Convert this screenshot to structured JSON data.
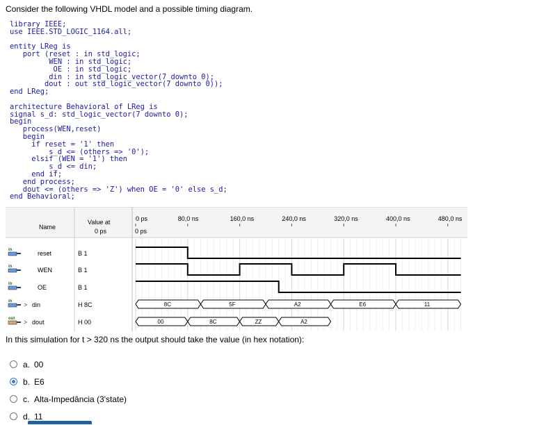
{
  "question": "Consider the following VHDL model and a possible timing diagram.",
  "code_lines": [
    "library IEEE;",
    "use IEEE.STD_LOGIC_1164.all;",
    "",
    "entity LReg is",
    "   port (reset : in std_logic;",
    "         WEN : in std_logic;",
    "          OE : in std_logic;",
    "         din : in std_logic_vector(7 downto 0);",
    "        dout : out std_logic_vector(7 downto 0));",
    "end LReg;",
    "",
    "architecture Behavioral of LReg is",
    "signal s_d: std_logic_vector(7 downto 0);",
    "begin",
    "   process(WEN,reset)",
    "   begin",
    "     if reset = '1' then",
    "         s_d <= (others => '0');",
    "     elsif (WEN = '1') then",
    "         s_d <= din;",
    "     end if;",
    "   end process;",
    "   dout <= (others => 'Z') when OE = '0' else s_d;",
    "end Behavioral;"
  ],
  "waveform": {
    "header_name": "Name",
    "header_value_line1": "Value at",
    "header_value_line2": "0 ps",
    "cursor_label": "0 ps",
    "time_labels": [
      "0 ps",
      "80,0 ns",
      "160,0 ns",
      "240,0 ns",
      "320,0 ns",
      "400,0 ns",
      "480,0 ns"
    ],
    "signals": [
      {
        "dir": "in",
        "name": "reset",
        "value": "B 1",
        "bus": false
      },
      {
        "dir": "in",
        "name": "WEN",
        "value": "B 1",
        "bus": false
      },
      {
        "dir": "in",
        "name": "OE",
        "value": "B 1",
        "bus": false
      },
      {
        "dir": "in",
        "name": "din",
        "value": "H 8C",
        "bus": true
      },
      {
        "dir": "out",
        "name": "dout",
        "value": "H 00",
        "bus": true
      }
    ],
    "din_segments": [
      "8C",
      "5F",
      "A2",
      "E6",
      "11"
    ],
    "dout_segments": [
      "00",
      "8C",
      "ZZ",
      "A2"
    ]
  },
  "prompt": "In this simulation for t > 320 ns the output should take the value (in hex notation):",
  "options": [
    {
      "letter": "a.",
      "text": "00",
      "selected": false
    },
    {
      "letter": "b.",
      "text": "E6",
      "selected": true
    },
    {
      "letter": "c.",
      "text": "Alta-Impedância (3'state)",
      "selected": false
    },
    {
      "letter": "d.",
      "text": "11",
      "selected": false
    }
  ]
}
